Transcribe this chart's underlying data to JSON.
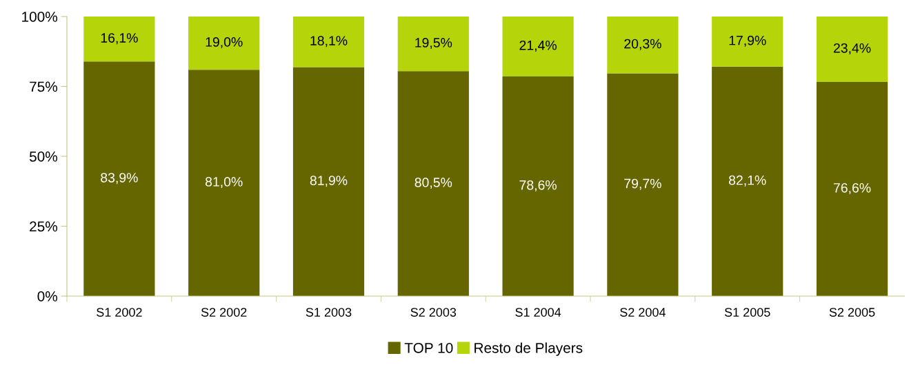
{
  "chart_data": {
    "type": "bar",
    "stacked": true,
    "categories": [
      "S1 2002",
      "S2 2002",
      "S1 2003",
      "S2 2003",
      "S1 2004",
      "S2 2004",
      "S1 2005",
      "S2 2005"
    ],
    "series": [
      {
        "name": "TOP 10",
        "color": "#666600",
        "values": [
          83.9,
          81.0,
          81.9,
          80.5,
          78.6,
          79.7,
          82.1,
          76.6
        ],
        "value_labels": [
          "83,9%",
          "81,0%",
          "81,9%",
          "80,5%",
          "78,6%",
          "79,7%",
          "82,1%",
          "76,6%"
        ]
      },
      {
        "name": "Resto de Players",
        "color": "#b5d40a",
        "values": [
          16.1,
          19.0,
          18.1,
          19.5,
          21.4,
          20.3,
          17.9,
          23.4
        ],
        "value_labels": [
          "16,1%",
          "19,0%",
          "18,1%",
          "19,5%",
          "21,4%",
          "20,3%",
          "17,9%",
          "23,4%"
        ]
      }
    ],
    "ylim": [
      0,
      100
    ],
    "yticks": [
      {
        "value": 0,
        "label": "0%"
      },
      {
        "value": 25,
        "label": "25%"
      },
      {
        "value": 50,
        "label": "50%"
      },
      {
        "value": 75,
        "label": "75%"
      },
      {
        "value": 100,
        "label": "100%"
      }
    ],
    "legend": "bottom"
  }
}
